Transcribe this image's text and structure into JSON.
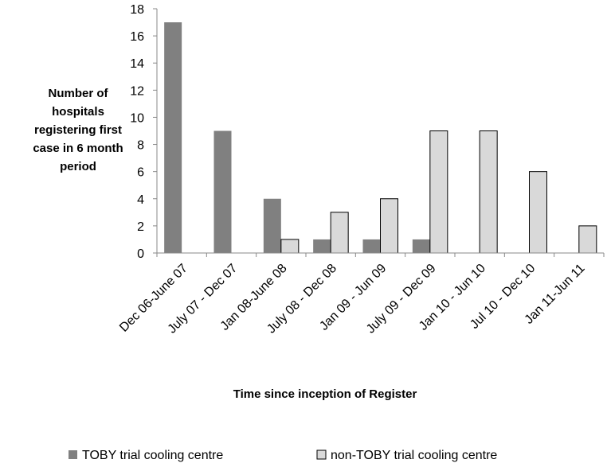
{
  "chart_data": {
    "type": "bar",
    "categories": [
      "Dec 06-June 07",
      "July 07 - Dec 07",
      "Jan 08-June 08",
      "July 08 - Dec 08",
      "Jan 09 - Jun 09",
      "July 09 - Dec 09",
      "Jan 10 - Jun 10",
      "Jul 10 - Dec 10",
      "Jan 11-Jun 11"
    ],
    "series": [
      {
        "name": "TOBY trial cooling centre",
        "values": [
          17,
          9,
          4,
          1,
          1,
          1,
          0,
          0,
          0
        ],
        "color": "#808080"
      },
      {
        "name": "non-TOBY trial cooling centre",
        "values": [
          0,
          0,
          1,
          3,
          4,
          9,
          9,
          6,
          2
        ],
        "color": "#d9d9d9"
      }
    ],
    "title": "",
    "ylabel_lines": [
      "Number of",
      "hospitals",
      "registering first",
      "case in 6 month",
      "period"
    ],
    "xlabel": "Time since inception of Register",
    "ylim": [
      0,
      18
    ],
    "yticks": [
      "0",
      "2",
      "4",
      "6",
      "8",
      "10",
      "12",
      "14",
      "16",
      "18"
    ],
    "grid": false,
    "legend_position": "bottom"
  }
}
